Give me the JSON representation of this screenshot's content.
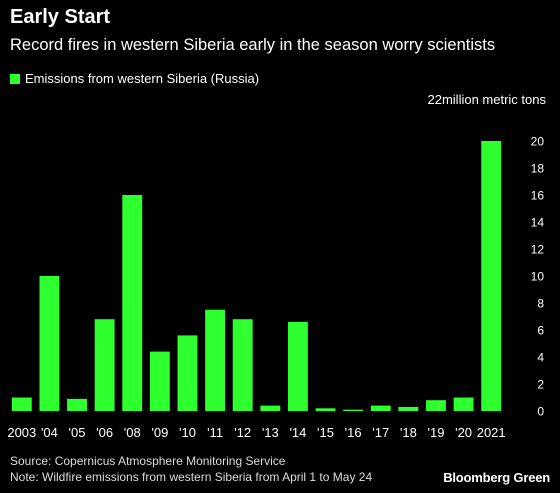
{
  "title": "Early Start",
  "subtitle": "Record fires in western Siberia early in the season worry scientists",
  "legend_label": "Emissions from western Siberia (Russia)",
  "source": "Source: Copernicus Atmosphere Monitoring Service",
  "note": "Note: Wildfire emissions from western Siberia from April 1 to May 24",
  "brand": "Bloomberg Green",
  "colors": {
    "bar": "#2eff2e",
    "background": "#000000",
    "text": "#ffffff"
  },
  "chart_data": {
    "type": "bar",
    "categories": [
      "2003",
      "'04",
      "'05",
      "'06",
      "'08",
      "'09",
      "'10",
      "'11",
      "'12",
      "'13",
      "'14",
      "'15",
      "'16",
      "'17",
      "'18",
      "'19",
      "'20",
      "2021"
    ],
    "series": [
      {
        "name": "Emissions from western Siberia (Russia)",
        "values": [
          1.0,
          10.0,
          0.9,
          6.8,
          16.0,
          4.4,
          5.6,
          7.5,
          6.8,
          0.4,
          6.6,
          0.2,
          0.1,
          0.4,
          0.3,
          0.8,
          1.0,
          20.0
        ]
      }
    ],
    "ylim": [
      0,
      22
    ],
    "yticks": [
      0,
      2,
      4,
      6,
      8,
      10,
      12,
      14,
      16,
      18,
      20
    ],
    "y_top_label": "22million metric tons",
    "y_axis_position": "right",
    "grid": false
  }
}
